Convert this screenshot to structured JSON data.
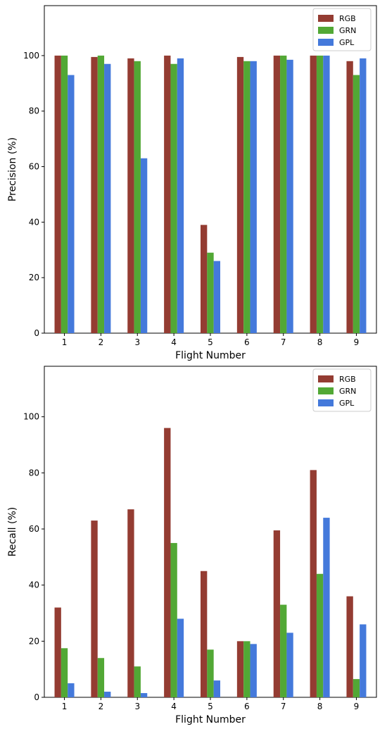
{
  "chart_data": [
    {
      "type": "bar",
      "xlabel": "Flight Number",
      "ylabel": "Precision (%)",
      "ylim": [
        0,
        118
      ],
      "yticks": [
        0,
        20,
        40,
        60,
        80,
        100
      ],
      "categories": [
        "1",
        "2",
        "3",
        "4",
        "5",
        "6",
        "7",
        "8",
        "9"
      ],
      "legend_position": "top-right",
      "grid": false,
      "series": [
        {
          "name": "RGB",
          "color": "#943c32",
          "values": [
            100,
            99.5,
            99,
            100,
            39,
            99.5,
            100,
            100,
            98
          ]
        },
        {
          "name": "GRN",
          "color": "#52a835",
          "values": [
            100,
            100,
            98,
            97,
            29,
            98,
            100,
            100,
            93
          ]
        },
        {
          "name": "GPL",
          "color": "#4479db",
          "values": [
            93,
            97,
            63,
            99,
            26,
            98,
            98.5,
            100,
            99
          ]
        }
      ]
    },
    {
      "type": "bar",
      "xlabel": "Flight Number",
      "ylabel": "Recall (%)",
      "ylim": [
        0,
        118
      ],
      "yticks": [
        0,
        20,
        40,
        60,
        80,
        100
      ],
      "categories": [
        "1",
        "2",
        "3",
        "4",
        "5",
        "6",
        "7",
        "8",
        "9"
      ],
      "legend_position": "top-right",
      "grid": false,
      "series": [
        {
          "name": "RGB",
          "color": "#943c32",
          "values": [
            32,
            63,
            67,
            96,
            45,
            20,
            59.5,
            81,
            36
          ]
        },
        {
          "name": "GRN",
          "color": "#52a835",
          "values": [
            17.5,
            14,
            11,
            55,
            17,
            20,
            33,
            44,
            6.5
          ]
        },
        {
          "name": "GPL",
          "color": "#4479db",
          "values": [
            5,
            2,
            1.5,
            28,
            6,
            19,
            23,
            64,
            26
          ]
        }
      ]
    }
  ]
}
